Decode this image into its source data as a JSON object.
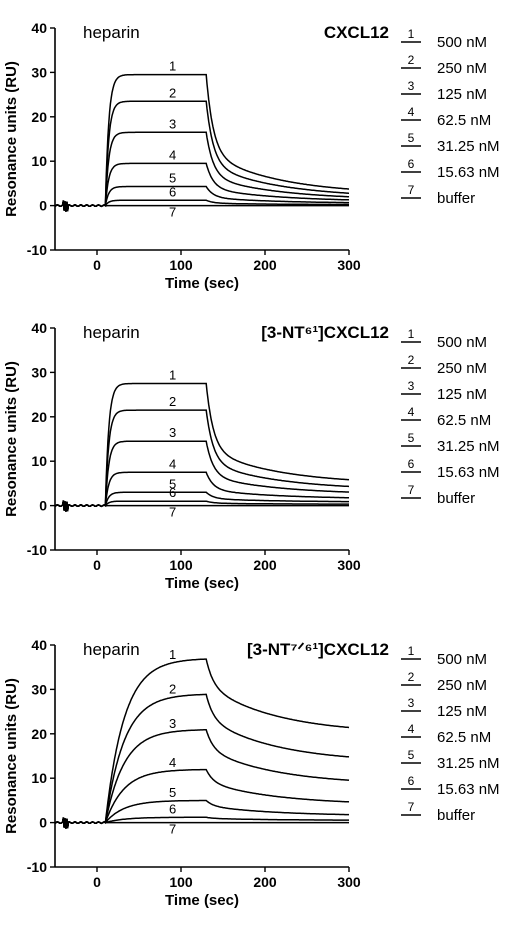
{
  "chart_data": [
    {
      "type": "line",
      "analyte_label": "heparin",
      "title": "CXCL12",
      "xlabel": "Time (sec)",
      "ylabel": "Resonance units (RU)",
      "xlim": [
        -50,
        300
      ],
      "ylim": [
        -10,
        40
      ],
      "xticks": [
        "0",
        "100",
        "200",
        "300"
      ],
      "yticks": [
        "-10",
        "0",
        "10",
        "20",
        "30",
        "40"
      ],
      "grid": false,
      "legend_position": "right",
      "series": [
        {
          "marker": "1",
          "name": "500 nM",
          "plateau": 29.5,
          "end_value": 2.5
        },
        {
          "marker": "2",
          "name": "250 nM",
          "plateau": 23.5,
          "end_value": 1.8
        },
        {
          "marker": "3",
          "name": "125 nM",
          "plateau": 16.5,
          "end_value": 1.3
        },
        {
          "marker": "4",
          "name": "62.5 nM",
          "plateau": 9.5,
          "end_value": 0.9
        },
        {
          "marker": "5",
          "name": "31.25 nM",
          "plateau": 4.3,
          "end_value": 0.5
        },
        {
          "marker": "6",
          "name": "15.63 nM",
          "plateau": 1.2,
          "end_value": 0.2
        },
        {
          "marker": "7",
          "name": "buffer",
          "plateau": 0,
          "end_value": 0
        }
      ]
    },
    {
      "type": "line",
      "analyte_label": "heparin",
      "title": "[3-NT⁶¹]CXCL12",
      "xlabel": "Time (sec)",
      "ylabel": "Resonance units (RU)",
      "xlim": [
        -50,
        300
      ],
      "ylim": [
        -10,
        40
      ],
      "xticks": [
        "0",
        "100",
        "200",
        "300"
      ],
      "yticks": [
        "-10",
        "0",
        "10",
        "20",
        "30",
        "40"
      ],
      "grid": false,
      "legend_position": "right",
      "series": [
        {
          "marker": "1",
          "name": "500 nM",
          "plateau": 27.5,
          "end_value": 4.8
        },
        {
          "marker": "2",
          "name": "250 nM",
          "plateau": 21.5,
          "end_value": 3.5
        },
        {
          "marker": "3",
          "name": "125 nM",
          "plateau": 14.5,
          "end_value": 2.5
        },
        {
          "marker": "4",
          "name": "62.5 nM",
          "plateau": 7.5,
          "end_value": 1.5
        },
        {
          "marker": "5",
          "name": "31.25 nM",
          "plateau": 3,
          "end_value": 0.8
        },
        {
          "marker": "6",
          "name": "15.63 nM",
          "plateau": 1,
          "end_value": 0.3
        },
        {
          "marker": "7",
          "name": "buffer",
          "plateau": 0,
          "end_value": 0
        }
      ]
    },
    {
      "type": "line",
      "analyte_label": "heparin",
      "title": "[3-NT⁷ᐟ⁶¹]CXCL12",
      "xlabel": "Time (sec)",
      "ylabel": "Resonance units (RU)",
      "xlim": [
        -50,
        300
      ],
      "ylim": [
        -10,
        40
      ],
      "xticks": [
        "0",
        "100",
        "200",
        "300"
      ],
      "yticks": [
        "-10",
        "0",
        "10",
        "20",
        "30",
        "40"
      ],
      "grid": false,
      "legend_position": "right",
      "series": [
        {
          "marker": "1",
          "name": "500 nM",
          "plateau": 37,
          "end_value": 20
        },
        {
          "marker": "2",
          "name": "250 nM",
          "plateau": 29,
          "end_value": 13.5
        },
        {
          "marker": "3",
          "name": "125 nM",
          "plateau": 21,
          "end_value": 8.5
        },
        {
          "marker": "4",
          "name": "62.5 nM",
          "plateau": 12,
          "end_value": 4
        },
        {
          "marker": "5",
          "name": "31.25 nM",
          "plateau": 5,
          "end_value": 1.5
        },
        {
          "marker": "6",
          "name": "15.63 nM",
          "plateau": 1.2,
          "end_value": 0.5
        },
        {
          "marker": "7",
          "name": "buffer",
          "plateau": 0,
          "end_value": 0
        }
      ]
    }
  ]
}
